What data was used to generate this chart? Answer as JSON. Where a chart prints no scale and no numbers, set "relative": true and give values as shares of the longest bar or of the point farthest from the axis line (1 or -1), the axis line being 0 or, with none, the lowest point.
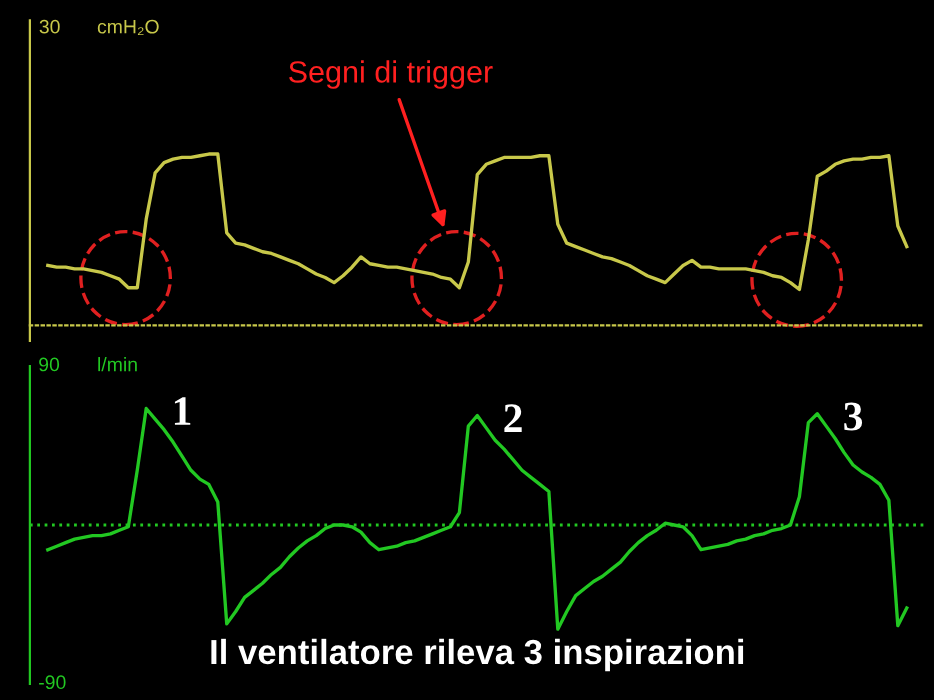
{
  "chart_data": [
    {
      "type": "line",
      "ylabel": "cmH₂O",
      "relative": true,
      "categories": [
        null,
        null,
        null,
        null,
        null,
        null,
        null,
        null,
        null,
        null,
        null,
        null,
        null,
        null,
        null,
        null,
        null,
        null,
        null,
        null,
        null,
        null,
        null,
        null,
        null,
        null,
        null,
        null,
        null,
        null,
        null,
        null,
        null,
        null,
        null,
        null,
        null,
        null,
        null,
        null,
        null,
        null,
        null,
        null,
        null,
        null,
        null,
        null,
        null,
        null,
        null,
        null,
        null,
        null,
        null,
        null,
        null,
        null,
        null,
        null,
        null,
        null,
        null,
        null,
        null,
        null,
        null,
        null,
        null,
        null,
        null,
        null,
        null,
        null,
        null,
        null,
        null,
        null,
        null,
        null,
        null,
        null,
        null,
        null,
        null,
        null,
        null,
        null,
        null,
        null,
        null,
        null,
        null,
        null,
        null,
        null,
        null
      ],
      "tick_labels": false,
      "series": [
        {
          "color": "#c8c84a",
          "values": [
            0.35,
            0.34,
            0.34,
            0.33,
            0.33,
            0.32,
            0.31,
            0.29,
            0.27,
            0.22,
            0.22,
            0.62,
            0.89,
            0.95,
            0.97,
            0.98,
            0.98,
            0.99,
            1.0,
            1.0,
            0.54,
            0.48,
            0.47,
            0.45,
            0.43,
            0.42,
            0.4,
            0.38,
            0.36,
            0.33,
            0.3,
            0.28,
            0.25,
            0.29,
            0.34,
            0.4,
            0.36,
            0.35,
            0.34,
            0.34,
            0.33,
            0.32,
            0.31,
            0.3,
            0.28,
            0.27,
            0.22,
            0.37,
            0.88,
            0.94,
            0.96,
            0.98,
            0.98,
            0.98,
            0.98,
            0.99,
            0.99,
            0.59,
            0.48,
            0.46,
            0.44,
            0.42,
            0.4,
            0.39,
            0.37,
            0.35,
            0.32,
            0.29,
            0.27,
            0.25,
            0.3,
            0.35,
            0.38,
            0.34,
            0.34,
            0.33,
            0.33,
            0.33,
            0.33,
            0.32,
            0.31,
            0.29,
            0.28,
            0.25,
            0.21,
            0.5,
            0.87,
            0.9,
            0.94,
            0.96,
            0.97,
            0.97,
            0.98,
            0.98,
            0.99,
            0.58,
            0.46
          ]
        }
      ],
      "annotations": [
        "30",
        "Segni di trigger"
      ]
    },
    {
      "type": "line",
      "ylabel": "l/min",
      "categories": [
        null,
        null,
        null,
        null,
        null,
        null,
        null,
        null,
        null,
        null,
        null,
        null,
        null,
        null,
        null,
        null,
        null,
        null,
        null,
        null,
        null,
        null,
        null,
        null,
        null,
        null,
        null,
        null,
        null,
        null,
        null,
        null,
        null,
        null,
        null,
        null,
        null,
        null,
        null,
        null,
        null,
        null,
        null,
        null,
        null,
        null,
        null,
        null,
        null,
        null,
        null,
        null,
        null,
        null,
        null,
        null,
        null,
        null,
        null,
        null,
        null,
        null,
        null,
        null,
        null,
        null,
        null,
        null,
        null,
        null,
        null,
        null,
        null,
        null,
        null,
        null,
        null,
        null,
        null,
        null,
        null,
        null,
        null,
        null,
        null,
        null,
        null,
        null,
        null,
        null,
        null,
        null,
        null,
        null,
        null,
        null,
        null
      ],
      "ylim": [
        -90,
        90
      ],
      "yticks": [
        90,
        -90
      ],
      "tick_labels": "y",
      "ref_lines": [
        {
          "axis": "y",
          "value": 0,
          "color": "#22c822",
          "line_style": "dotted"
        }
      ],
      "series": [
        {
          "color": "#22c822",
          "values": [
            -14,
            -12,
            -10,
            -8,
            -7,
            -6,
            -6,
            -5,
            -3,
            -1,
            31,
            66,
            60,
            54,
            47,
            39,
            31,
            26,
            23,
            13,
            -56,
            -49,
            -41,
            -37,
            -33,
            -28,
            -24,
            -18,
            -13,
            -9,
            -6,
            -2,
            0,
            0,
            -1,
            -4,
            -10,
            -14,
            -13,
            -12,
            -10,
            -9,
            -7,
            -5,
            -3,
            -1,
            7,
            56,
            62,
            55,
            48,
            43,
            37,
            31,
            27,
            23,
            19,
            -59,
            -49,
            -40,
            -36,
            -32,
            -29,
            -25,
            -21,
            -15,
            -10,
            -6,
            -3,
            1,
            0,
            -1,
            -6,
            -14,
            -13,
            -12,
            -11,
            -9,
            -8,
            -6,
            -5,
            -3,
            -2,
            0,
            16,
            58,
            63,
            56,
            49,
            41,
            34,
            30,
            27,
            23,
            14,
            -57,
            -47
          ]
        }
      ],
      "annotations": [
        "1",
        "2",
        "3",
        "Il ventilatore rileva 3 inspirazioni"
      ]
    }
  ]
}
